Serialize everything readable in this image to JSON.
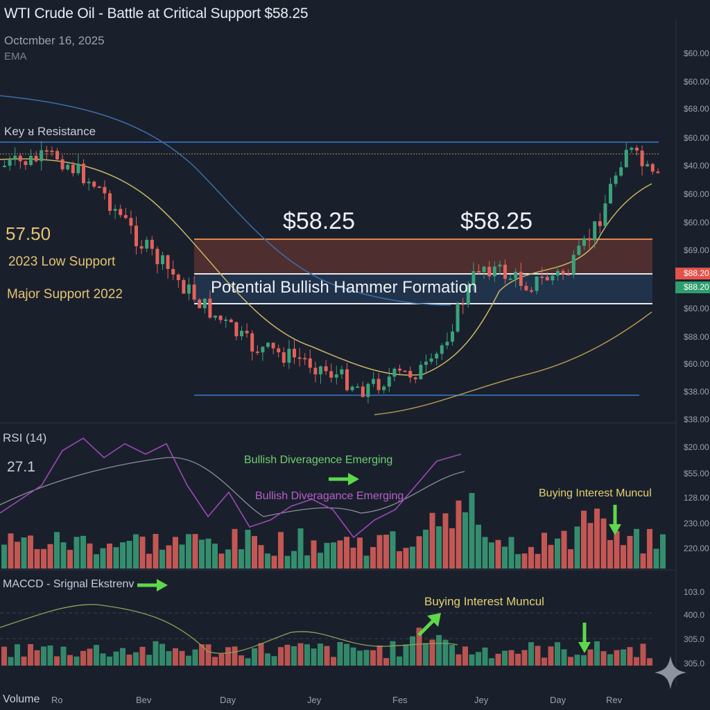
{
  "title": "WTI Crude Oil - Battle at Critical Support $58.25",
  "date": "Octcmber 16, 2025",
  "ema_label": "EMA",
  "annotations": {
    "resistance": "Key ᴚ Resistance",
    "left_price": "57.50",
    "low_2023": "2023 Low Support",
    "major_2022": "Major Support 2022",
    "zone_price_a": "$58.25",
    "zone_price_b": "$58.25",
    "hammer": "Potential Bullish Hammer Formation",
    "divergence_1": "Bullish Diveragence Emerging",
    "divergence_2": "Bullish Diveragance Emerging",
    "buying_1": "Buying Interest Muncul",
    "buying_2": "Buying Interest Muncul"
  },
  "panels": {
    "rsi_title": "RSI (14)",
    "rsi_value": "27.1",
    "macd_title": "MACCD - Srignal Ekstrenv",
    "volume_title": "Volume"
  },
  "price_axis": [
    "$60.00",
    "$60.00",
    "$68.00",
    "$60.00",
    "$40.00",
    "$60.00",
    "$60.00",
    "$69.00",
    "$60.00",
    "$88.00",
    "$60.00",
    "$38.00",
    "$38.00"
  ],
  "price_badges": [
    {
      "text": "$88.20",
      "color": "#e2534b"
    },
    {
      "text": "$88.20",
      "color": "#2f9e6e"
    }
  ],
  "rsi_axis": [
    "$20.00",
    "$55.00",
    "128.00",
    "230.00",
    "220.00"
  ],
  "macd_axis": [
    "103.0",
    "400.0",
    "305.0",
    "305.0"
  ],
  "x_axis": [
    "Ro",
    "Bev",
    "Day",
    "Jey",
    "Fes",
    "Jey",
    "Day",
    "Rev"
  ],
  "colors": {
    "bull": "#3aa27a",
    "bear": "#e2625a",
    "ema_fast": "#c9b766",
    "ema_slow": "#3c6fa8",
    "rsi": "#9b4bb4",
    "support_zone": "#7b3a33",
    "support_zone_low": "#27456a",
    "arrow": "#5ed84a"
  },
  "chart_data": {
    "type": "candlestick",
    "title": "WTI Crude Oil - Battle at Critical Support $58.25",
    "support_level": 58.25,
    "panels": [
      "price",
      "RSI (14)",
      "MACD",
      "Volume"
    ],
    "x_ticks": [
      "Ro",
      "Bev",
      "Day",
      "Jey",
      "Fes",
      "Jey",
      "Day",
      "Rev"
    ]
  }
}
